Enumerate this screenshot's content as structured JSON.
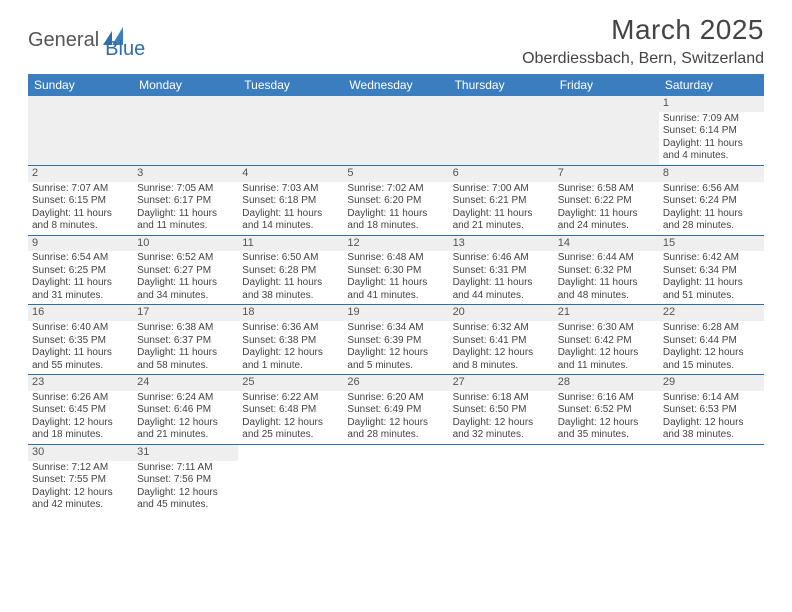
{
  "logo": {
    "text1": "General",
    "text2": "Blue"
  },
  "title": "March 2025",
  "location": "Oberdiessbach, Bern, Switzerland",
  "colors": {
    "header_bg": "#3a7ebf",
    "header_text": "#ffffff",
    "border": "#2f6fa7",
    "daynum_bg": "#efefef",
    "text": "#444444"
  },
  "weekdays": [
    "Sunday",
    "Monday",
    "Tuesday",
    "Wednesday",
    "Thursday",
    "Friday",
    "Saturday"
  ],
  "days": {
    "1": {
      "sr": "Sunrise: 7:09 AM",
      "ss": "Sunset: 6:14 PM",
      "dl": "Daylight: 11 hours and 4 minutes."
    },
    "2": {
      "sr": "Sunrise: 7:07 AM",
      "ss": "Sunset: 6:15 PM",
      "dl": "Daylight: 11 hours and 8 minutes."
    },
    "3": {
      "sr": "Sunrise: 7:05 AM",
      "ss": "Sunset: 6:17 PM",
      "dl": "Daylight: 11 hours and 11 minutes."
    },
    "4": {
      "sr": "Sunrise: 7:03 AM",
      "ss": "Sunset: 6:18 PM",
      "dl": "Daylight: 11 hours and 14 minutes."
    },
    "5": {
      "sr": "Sunrise: 7:02 AM",
      "ss": "Sunset: 6:20 PM",
      "dl": "Daylight: 11 hours and 18 minutes."
    },
    "6": {
      "sr": "Sunrise: 7:00 AM",
      "ss": "Sunset: 6:21 PM",
      "dl": "Daylight: 11 hours and 21 minutes."
    },
    "7": {
      "sr": "Sunrise: 6:58 AM",
      "ss": "Sunset: 6:22 PM",
      "dl": "Daylight: 11 hours and 24 minutes."
    },
    "8": {
      "sr": "Sunrise: 6:56 AM",
      "ss": "Sunset: 6:24 PM",
      "dl": "Daylight: 11 hours and 28 minutes."
    },
    "9": {
      "sr": "Sunrise: 6:54 AM",
      "ss": "Sunset: 6:25 PM",
      "dl": "Daylight: 11 hours and 31 minutes."
    },
    "10": {
      "sr": "Sunrise: 6:52 AM",
      "ss": "Sunset: 6:27 PM",
      "dl": "Daylight: 11 hours and 34 minutes."
    },
    "11": {
      "sr": "Sunrise: 6:50 AM",
      "ss": "Sunset: 6:28 PM",
      "dl": "Daylight: 11 hours and 38 minutes."
    },
    "12": {
      "sr": "Sunrise: 6:48 AM",
      "ss": "Sunset: 6:30 PM",
      "dl": "Daylight: 11 hours and 41 minutes."
    },
    "13": {
      "sr": "Sunrise: 6:46 AM",
      "ss": "Sunset: 6:31 PM",
      "dl": "Daylight: 11 hours and 44 minutes."
    },
    "14": {
      "sr": "Sunrise: 6:44 AM",
      "ss": "Sunset: 6:32 PM",
      "dl": "Daylight: 11 hours and 48 minutes."
    },
    "15": {
      "sr": "Sunrise: 6:42 AM",
      "ss": "Sunset: 6:34 PM",
      "dl": "Daylight: 11 hours and 51 minutes."
    },
    "16": {
      "sr": "Sunrise: 6:40 AM",
      "ss": "Sunset: 6:35 PM",
      "dl": "Daylight: 11 hours and 55 minutes."
    },
    "17": {
      "sr": "Sunrise: 6:38 AM",
      "ss": "Sunset: 6:37 PM",
      "dl": "Daylight: 11 hours and 58 minutes."
    },
    "18": {
      "sr": "Sunrise: 6:36 AM",
      "ss": "Sunset: 6:38 PM",
      "dl": "Daylight: 12 hours and 1 minute."
    },
    "19": {
      "sr": "Sunrise: 6:34 AM",
      "ss": "Sunset: 6:39 PM",
      "dl": "Daylight: 12 hours and 5 minutes."
    },
    "20": {
      "sr": "Sunrise: 6:32 AM",
      "ss": "Sunset: 6:41 PM",
      "dl": "Daylight: 12 hours and 8 minutes."
    },
    "21": {
      "sr": "Sunrise: 6:30 AM",
      "ss": "Sunset: 6:42 PM",
      "dl": "Daylight: 12 hours and 11 minutes."
    },
    "22": {
      "sr": "Sunrise: 6:28 AM",
      "ss": "Sunset: 6:44 PM",
      "dl": "Daylight: 12 hours and 15 minutes."
    },
    "23": {
      "sr": "Sunrise: 6:26 AM",
      "ss": "Sunset: 6:45 PM",
      "dl": "Daylight: 12 hours and 18 minutes."
    },
    "24": {
      "sr": "Sunrise: 6:24 AM",
      "ss": "Sunset: 6:46 PM",
      "dl": "Daylight: 12 hours and 21 minutes."
    },
    "25": {
      "sr": "Sunrise: 6:22 AM",
      "ss": "Sunset: 6:48 PM",
      "dl": "Daylight: 12 hours and 25 minutes."
    },
    "26": {
      "sr": "Sunrise: 6:20 AM",
      "ss": "Sunset: 6:49 PM",
      "dl": "Daylight: 12 hours and 28 minutes."
    },
    "27": {
      "sr": "Sunrise: 6:18 AM",
      "ss": "Sunset: 6:50 PM",
      "dl": "Daylight: 12 hours and 32 minutes."
    },
    "28": {
      "sr": "Sunrise: 6:16 AM",
      "ss": "Sunset: 6:52 PM",
      "dl": "Daylight: 12 hours and 35 minutes."
    },
    "29": {
      "sr": "Sunrise: 6:14 AM",
      "ss": "Sunset: 6:53 PM",
      "dl": "Daylight: 12 hours and 38 minutes."
    },
    "30": {
      "sr": "Sunrise: 7:12 AM",
      "ss": "Sunset: 7:55 PM",
      "dl": "Daylight: 12 hours and 42 minutes."
    },
    "31": {
      "sr": "Sunrise: 7:11 AM",
      "ss": "Sunset: 7:56 PM",
      "dl": "Daylight: 12 hours and 45 minutes."
    }
  },
  "grid": [
    [
      null,
      null,
      null,
      null,
      null,
      null,
      "1"
    ],
    [
      "2",
      "3",
      "4",
      "5",
      "6",
      "7",
      "8"
    ],
    [
      "9",
      "10",
      "11",
      "12",
      "13",
      "14",
      "15"
    ],
    [
      "16",
      "17",
      "18",
      "19",
      "20",
      "21",
      "22"
    ],
    [
      "23",
      "24",
      "25",
      "26",
      "27",
      "28",
      "29"
    ],
    [
      "30",
      "31",
      null,
      null,
      null,
      null,
      null
    ]
  ]
}
